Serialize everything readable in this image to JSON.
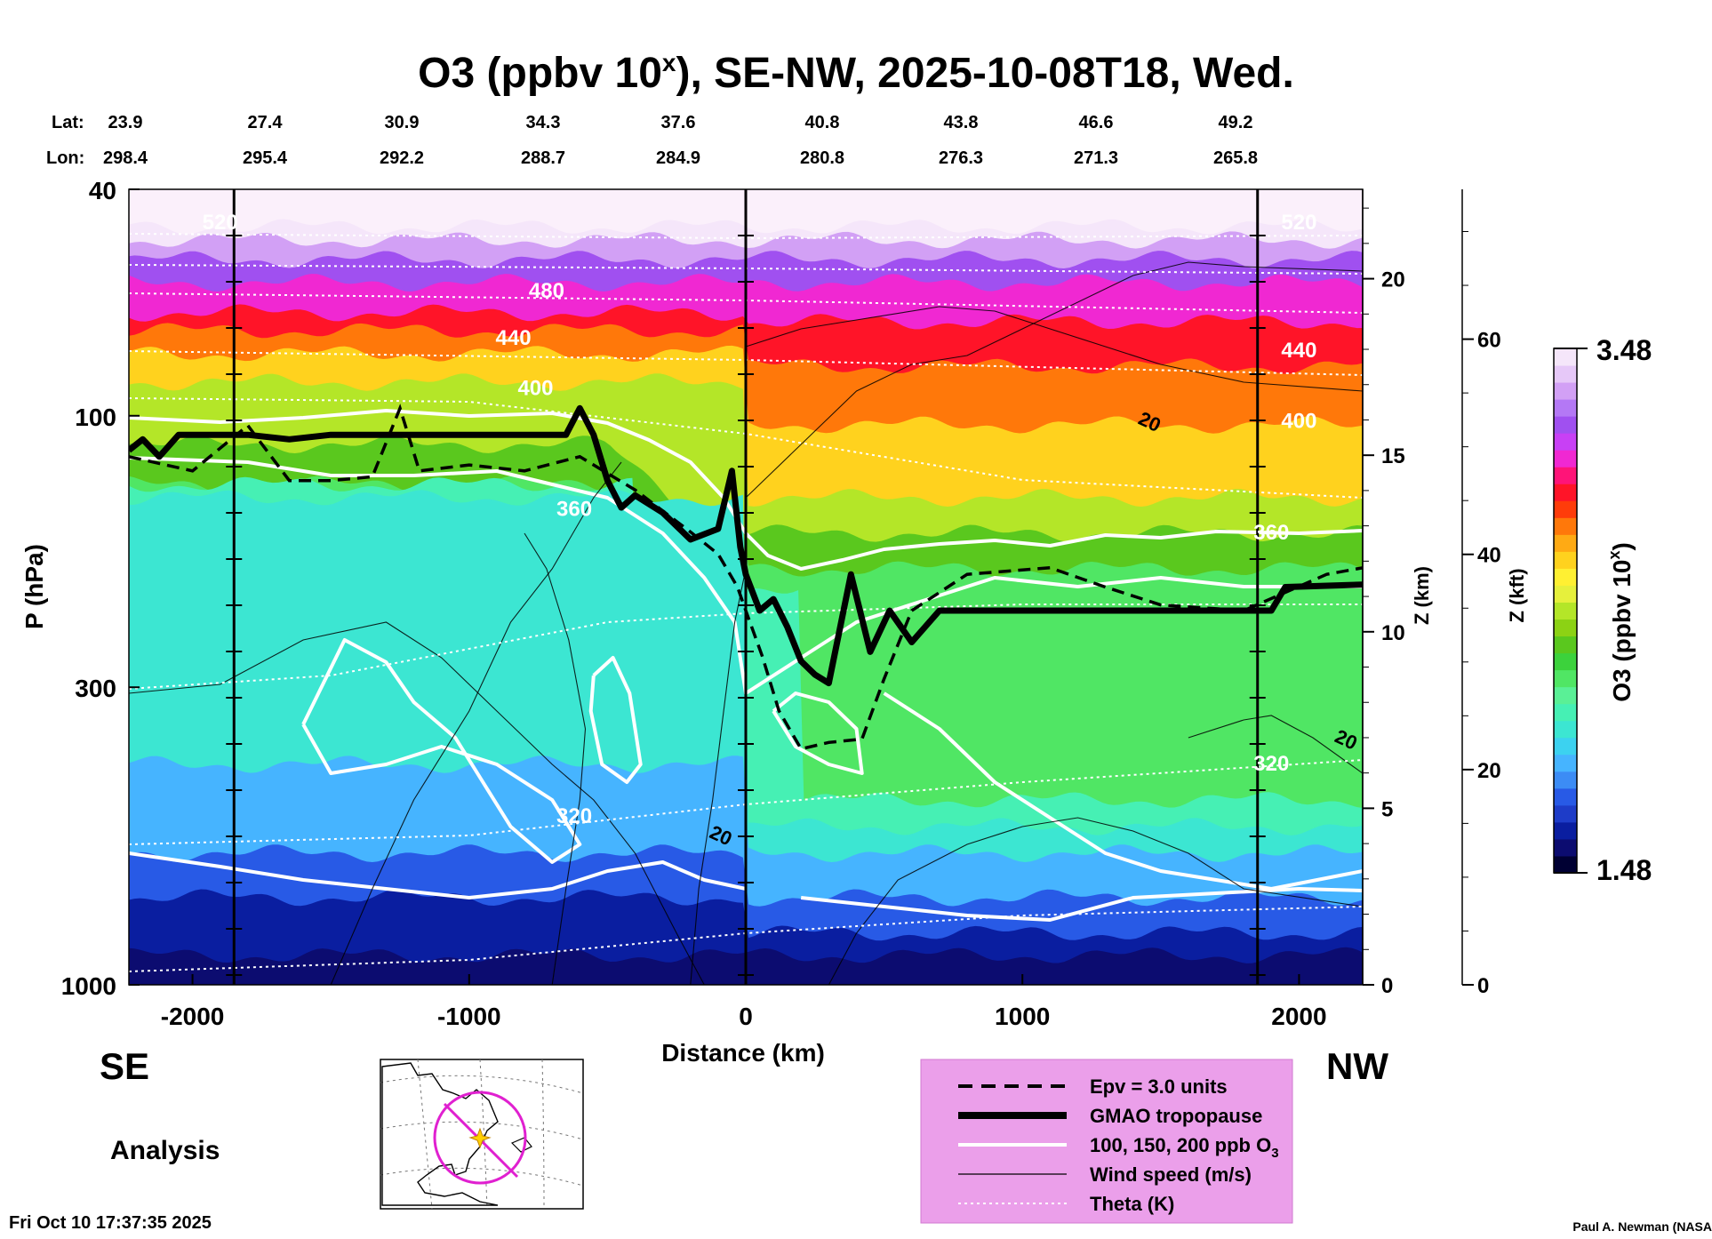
{
  "chart_data": {
    "type": "heatmap",
    "title": {
      "prefix": "O3 (ppbv 10",
      "superscript": "x",
      "suffix": "), SE-NW, 2025-10-08T18, Wed."
    },
    "lat_label": "Lat:",
    "lon_label": "Lon:",
    "lats": [
      "23.9",
      "27.4",
      "30.9",
      "34.3",
      "37.6",
      "40.8",
      "43.8",
      "46.6",
      "49.2"
    ],
    "lons": [
      "298.4",
      "295.4",
      "292.2",
      "288.7",
      "284.9",
      "280.8",
      "276.3",
      "271.3",
      "265.8"
    ],
    "xlabel": "Distance (km)",
    "ylabel": "P (hPa)",
    "zlabel_km": "Z (km)",
    "zlabel_kft": "Z (kft)",
    "xlim": [
      -2230,
      2230
    ],
    "ylim": [
      1000,
      40
    ],
    "x_ticks": [
      -2000,
      -1000,
      0,
      1000,
      2000
    ],
    "x_tick_labels": [
      "-2000",
      "-1000",
      "0",
      "1000",
      "2000"
    ],
    "p_ticks": [
      40,
      100,
      300,
      1000
    ],
    "p_tick_labels": [
      "40",
      "100",
      "300",
      "1000"
    ],
    "z_km_ticks": [
      0,
      5,
      10,
      15,
      20
    ],
    "z_km_tick_labels": [
      "0",
      "5",
      "10",
      "15",
      "20"
    ],
    "z_kft_ticks": [
      0,
      20,
      40,
      60
    ],
    "z_kft_tick_labels": [
      "0",
      "20",
      "40",
      "60"
    ],
    "vertical_markers_km": [
      -1850,
      0,
      1850
    ],
    "theta_labels": [
      {
        "x": -1900,
        "p": 47,
        "text": "520"
      },
      {
        "x": -720,
        "p": 62,
        "text": "480"
      },
      {
        "x": -840,
        "p": 75,
        "text": "440"
      },
      {
        "x": -760,
        "p": 92,
        "text": "400"
      },
      {
        "x": -620,
        "p": 150,
        "text": "360"
      },
      {
        "x": -620,
        "p": 520,
        "text": "320"
      },
      {
        "x": 2000,
        "p": 47,
        "text": "520"
      },
      {
        "x": 2000,
        "p": 79,
        "text": "440"
      },
      {
        "x": 2000,
        "p": 105,
        "text": "400"
      },
      {
        "x": 1900,
        "p": 165,
        "text": "360"
      },
      {
        "x": 1900,
        "p": 420,
        "text": "320"
      }
    ],
    "wind_labels": [
      {
        "x": 1450,
        "p": 105,
        "text": "20"
      },
      {
        "x": -100,
        "p": 560,
        "text": "20"
      },
      {
        "x": 2160,
        "p": 380,
        "text": "20"
      }
    ],
    "tropopause_hpa": [
      {
        "x": -2230,
        "p": 115
      },
      {
        "x": -2180,
        "p": 110
      },
      {
        "x": -2120,
        "p": 118
      },
      {
        "x": -2050,
        "p": 108
      },
      {
        "x": -1800,
        "p": 108
      },
      {
        "x": -1650,
        "p": 110
      },
      {
        "x": -1500,
        "p": 108
      },
      {
        "x": -650,
        "p": 108
      },
      {
        "x": -600,
        "p": 97
      },
      {
        "x": -550,
        "p": 108
      },
      {
        "x": -500,
        "p": 130
      },
      {
        "x": -450,
        "p": 145
      },
      {
        "x": -400,
        "p": 138
      },
      {
        "x": -300,
        "p": 148
      },
      {
        "x": -200,
        "p": 165
      },
      {
        "x": -100,
        "p": 158
      },
      {
        "x": -50,
        "p": 125
      },
      {
        "x": -20,
        "p": 170
      },
      {
        "x": 0,
        "p": 190
      },
      {
        "x": 50,
        "p": 220
      },
      {
        "x": 100,
        "p": 210
      },
      {
        "x": 150,
        "p": 235
      },
      {
        "x": 200,
        "p": 270
      },
      {
        "x": 250,
        "p": 285
      },
      {
        "x": 300,
        "p": 295
      },
      {
        "x": 380,
        "p": 190
      },
      {
        "x": 450,
        "p": 260
      },
      {
        "x": 520,
        "p": 220
      },
      {
        "x": 600,
        "p": 250
      },
      {
        "x": 700,
        "p": 220
      },
      {
        "x": 1900,
        "p": 220
      },
      {
        "x": 1950,
        "p": 200
      },
      {
        "x": 2230,
        "p": 198
      }
    ],
    "epv_hpa": [
      {
        "x": -2230,
        "p": 118
      },
      {
        "x": -2000,
        "p": 125
      },
      {
        "x": -1800,
        "p": 104
      },
      {
        "x": -1650,
        "p": 130
      },
      {
        "x": -1500,
        "p": 130
      },
      {
        "x": -1350,
        "p": 128
      },
      {
        "x": -1250,
        "p": 97
      },
      {
        "x": -1180,
        "p": 125
      },
      {
        "x": -1000,
        "p": 122
      },
      {
        "x": -800,
        "p": 125
      },
      {
        "x": -600,
        "p": 118
      },
      {
        "x": -400,
        "p": 135
      },
      {
        "x": -200,
        "p": 160
      },
      {
        "x": -100,
        "p": 175
      },
      {
        "x": -30,
        "p": 200
      },
      {
        "x": 0,
        "p": 220
      },
      {
        "x": 60,
        "p": 265
      },
      {
        "x": 120,
        "p": 330
      },
      {
        "x": 200,
        "p": 385
      },
      {
        "x": 300,
        "p": 375
      },
      {
        "x": 420,
        "p": 370
      },
      {
        "x": 500,
        "p": 290
      },
      {
        "x": 600,
        "p": 220
      },
      {
        "x": 800,
        "p": 190
      },
      {
        "x": 1100,
        "p": 185
      },
      {
        "x": 1300,
        "p": 200
      },
      {
        "x": 1500,
        "p": 215
      },
      {
        "x": 1800,
        "p": 220
      },
      {
        "x": 2100,
        "p": 190
      },
      {
        "x": 2230,
        "p": 185
      }
    ],
    "legend": [
      {
        "style": "dashed",
        "label": "Epv = 3.0 units"
      },
      {
        "style": "thick",
        "label": "GMAO tropopause"
      },
      {
        "style": "white",
        "label": "100, 150, 200 ppb O",
        "sub": "3"
      },
      {
        "style": "thin",
        "label": "Wind speed (m/s)"
      },
      {
        "style": "dotted",
        "label": "Theta (K)"
      }
    ],
    "colorbar": {
      "label_prefix": "O3 (ppbv 10",
      "label_superscript": "x",
      "label_suffix": ")",
      "min": "1.48",
      "max": "3.48",
      "colors": [
        "#000033",
        "#0c0c70",
        "#0a1ea0",
        "#1e3cc8",
        "#285ae6",
        "#3c8cf5",
        "#46b4ff",
        "#3cd2f0",
        "#3ce6d2",
        "#46f0b4",
        "#5af096",
        "#50e664",
        "#3cd23c",
        "#5ac81e",
        "#8cd214",
        "#b4e628",
        "#e6f03c",
        "#fff032",
        "#ffd21e",
        "#ffaa14",
        "#ff780a",
        "#ff3c0a",
        "#ff1428",
        "#ff1478",
        "#f028d2",
        "#c840f5",
        "#a050f0",
        "#b478f5",
        "#d2a0f5",
        "#e6c8f8",
        "#f5e6fa"
      ]
    },
    "direction_left": "SE",
    "direction_right": "NW",
    "analysis_label": "Analysis",
    "timestamp": "Fri Oct 10 17:37:35 2025",
    "credit": "Paul A. Newman (NASA"
  }
}
